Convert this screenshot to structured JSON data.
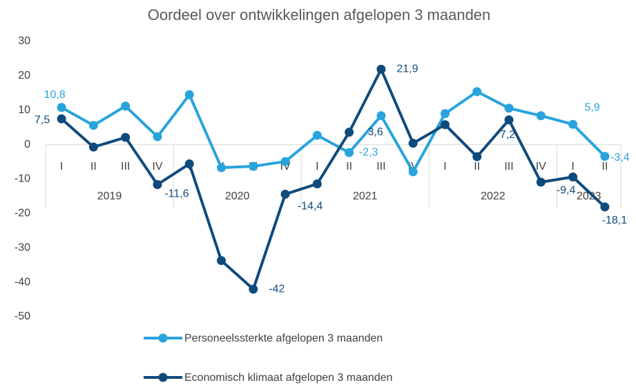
{
  "chart_data": {
    "type": "line",
    "title": "Oordeel over ontwikkelingen afgelopen 3 maanden",
    "categories": [
      "I",
      "II",
      "III",
      "IV",
      "I",
      "II",
      "III",
      "IV",
      "I",
      "II",
      "III",
      "IV",
      "I",
      "II",
      "III",
      "IV",
      "I",
      "II"
    ],
    "groups": [
      "2019",
      null,
      null,
      null,
      "2020",
      null,
      null,
      null,
      "2021",
      null,
      null,
      null,
      "2022",
      null,
      null,
      null,
      "2023",
      null
    ],
    "ylim": [
      -50,
      30
    ],
    "yticks": [
      -50,
      -40,
      -30,
      -20,
      -10,
      0,
      10,
      20,
      30
    ],
    "grid": false,
    "legend": "bottom",
    "series": [
      {
        "name": "Personeelssterkte afgelopen 3 maanden",
        "color": "#29a3dc",
        "values": [
          10.8,
          5.6,
          11.2,
          2.3,
          14.5,
          -6.7,
          -6.3,
          -4.9,
          2.7,
          -2.3,
          8.4,
          -7.9,
          9.0,
          15.4,
          10.6,
          8.4,
          5.9,
          -3.4
        ],
        "value_labels": [
          "10,8",
          null,
          null,
          null,
          null,
          null,
          null,
          null,
          null,
          "-2,3",
          null,
          null,
          null,
          null,
          null,
          null,
          "5,9",
          "-3,4"
        ]
      },
      {
        "name": "Economisch klimaat afgelopen 3 maanden",
        "color": "#0f4a7c",
        "values": [
          7.5,
          -0.7,
          2.1,
          -11.6,
          -5.6,
          -33.7,
          -42,
          -14.4,
          -11.4,
          3.6,
          21.9,
          0.4,
          5.8,
          -3.5,
          7.2,
          -10.9,
          -9.4,
          -18.1
        ],
        "value_labels": [
          "7,5",
          null,
          null,
          "-11,6",
          null,
          null,
          "-42",
          "-14,4",
          null,
          "3,6",
          "21,9",
          null,
          null,
          null,
          "7,2",
          null,
          "-9,4",
          "-18,1"
        ]
      }
    ]
  }
}
